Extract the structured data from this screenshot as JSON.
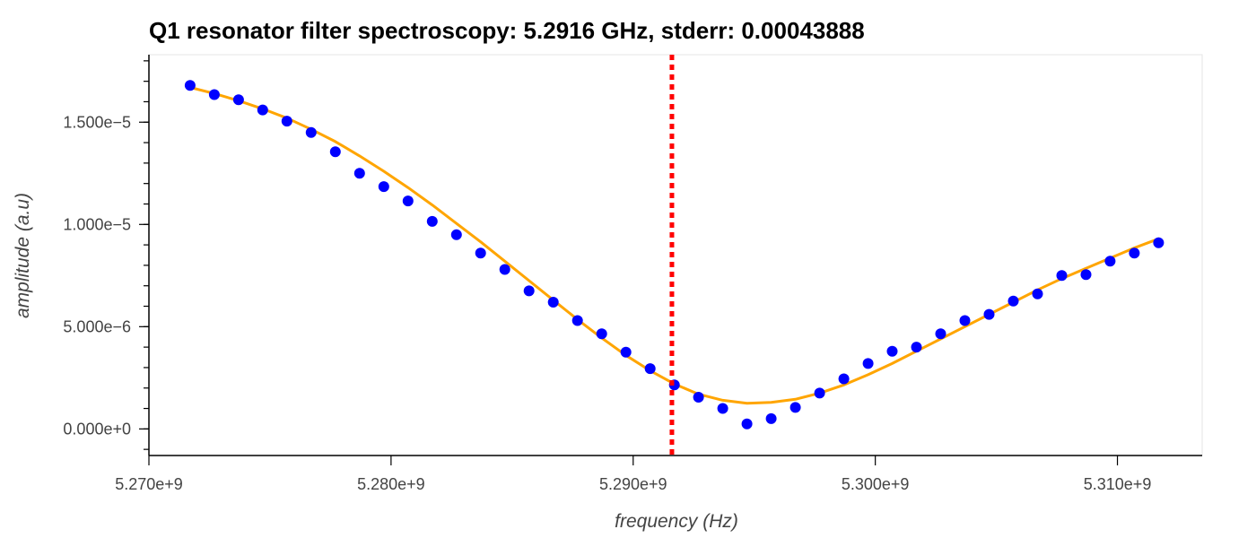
{
  "chart_data": {
    "type": "scatter",
    "title": "Q1 resonator filter spectroscopy: 5.2916 GHz, stderr: 0.00043888",
    "xlabel": "frequency (Hz)",
    "ylabel": "amplitude (a.u)",
    "xlim": [
      5270000000.0,
      5313500000.0
    ],
    "ylim": [
      -1.3e-06,
      1.83e-05
    ],
    "x_ticks": [
      5270000000.0,
      5280000000.0,
      5290000000.0,
      5300000000.0,
      5310000000.0
    ],
    "x_tick_labels": [
      "5.270e+9",
      "5.280e+9",
      "5.290e+9",
      "5.300e+9",
      "5.310e+9"
    ],
    "y_ticks": [
      0,
      5e-06,
      1e-05,
      1.5e-05
    ],
    "y_tick_labels": [
      "0.000e+0",
      "5.000e−6",
      "1.000e−5",
      "1.500e−5"
    ],
    "x_minor_step": 1000000000.0,
    "y_minor_step": 1e-06,
    "grid": false,
    "series": [
      {
        "name": "data",
        "kind": "scatter",
        "color": "#0000ff",
        "points": [
          [
            5271700000.0,
            1.68e-05
          ],
          [
            5272700000.0,
            1.635e-05
          ],
          [
            5273700000.0,
            1.61e-05
          ],
          [
            5274700000.0,
            1.56e-05
          ],
          [
            5275700000.0,
            1.505e-05
          ],
          [
            5276700000.0,
            1.45e-05
          ],
          [
            5277700000.0,
            1.355e-05
          ],
          [
            5278700000.0,
            1.25e-05
          ],
          [
            5279700000.0,
            1.185e-05
          ],
          [
            5280700000.0,
            1.115e-05
          ],
          [
            5281700000.0,
            1.015e-05
          ],
          [
            5282700000.0,
            9.5e-06
          ],
          [
            5283700000.0,
            8.6e-06
          ],
          [
            5284700000.0,
            7.8e-06
          ],
          [
            5285700000.0,
            6.75e-06
          ],
          [
            5286700000.0,
            6.2e-06
          ],
          [
            5287700000.0,
            5.3e-06
          ],
          [
            5288700000.0,
            4.65e-06
          ],
          [
            5289700000.0,
            3.75e-06
          ],
          [
            5290700000.0,
            2.95e-06
          ],
          [
            5291700000.0,
            2.15e-06
          ],
          [
            5292700000.0,
            1.55e-06
          ],
          [
            5293700000.0,
            1e-06
          ],
          [
            5294700000.0,
            2.5e-07
          ],
          [
            5295700000.0,
            5e-07
          ],
          [
            5296700000.0,
            1.05e-06
          ],
          [
            5297700000.0,
            1.75e-06
          ],
          [
            5298700000.0,
            2.45e-06
          ],
          [
            5299700000.0,
            3.2e-06
          ],
          [
            5300700000.0,
            3.8e-06
          ],
          [
            5301700000.0,
            4e-06
          ],
          [
            5302700000.0,
            4.65e-06
          ],
          [
            5303700000.0,
            5.3e-06
          ],
          [
            5304700000.0,
            5.6e-06
          ],
          [
            5305700000.0,
            6.25e-06
          ],
          [
            5306700000.0,
            6.6e-06
          ],
          [
            5307700000.0,
            7.5e-06
          ],
          [
            5308700000.0,
            7.55e-06
          ],
          [
            5309700000.0,
            8.2e-06
          ],
          [
            5310700000.0,
            8.6e-06
          ],
          [
            5311700000.0,
            9.1e-06
          ]
        ]
      },
      {
        "name": "fit",
        "kind": "line",
        "color": "#ffa500",
        "points": [
          [
            5271700000.0,
            1.67e-05
          ],
          [
            5272700000.0,
            1.64e-05
          ],
          [
            5273700000.0,
            1.605e-05
          ],
          [
            5274700000.0,
            1.565e-05
          ],
          [
            5275700000.0,
            1.52e-05
          ],
          [
            5276700000.0,
            1.465e-05
          ],
          [
            5277700000.0,
            1.405e-05
          ],
          [
            5278700000.0,
            1.335e-05
          ],
          [
            5279700000.0,
            1.26e-05
          ],
          [
            5280700000.0,
            1.18e-05
          ],
          [
            5281700000.0,
            1.095e-05
          ],
          [
            5282700000.0,
            1.005e-05
          ],
          [
            5283700000.0,
            9.15e-06
          ],
          [
            5284700000.0,
            8.2e-06
          ],
          [
            5285700000.0,
            7.25e-06
          ],
          [
            5286700000.0,
            6.3e-06
          ],
          [
            5287700000.0,
            5.35e-06
          ],
          [
            5288700000.0,
            4.45e-06
          ],
          [
            5289700000.0,
            3.6e-06
          ],
          [
            5290700000.0,
            2.85e-06
          ],
          [
            5291700000.0,
            2.2e-06
          ],
          [
            5292700000.0,
            1.7e-06
          ],
          [
            5293700000.0,
            1.4e-06
          ],
          [
            5294700000.0,
            1.25e-06
          ],
          [
            5295700000.0,
            1.3e-06
          ],
          [
            5296700000.0,
            1.45e-06
          ],
          [
            5297700000.0,
            1.75e-06
          ],
          [
            5298700000.0,
            2.15e-06
          ],
          [
            5299700000.0,
            2.65e-06
          ],
          [
            5300700000.0,
            3.2e-06
          ],
          [
            5301700000.0,
            3.8e-06
          ],
          [
            5302700000.0,
            4.4e-06
          ],
          [
            5303700000.0,
            5e-06
          ],
          [
            5304700000.0,
            5.6e-06
          ],
          [
            5305700000.0,
            6.2e-06
          ],
          [
            5306700000.0,
            6.8e-06
          ],
          [
            5307700000.0,
            7.35e-06
          ],
          [
            5308700000.0,
            7.85e-06
          ],
          [
            5309700000.0,
            8.35e-06
          ],
          [
            5310700000.0,
            8.85e-06
          ],
          [
            5311700000.0,
            9.3e-06
          ]
        ]
      }
    ],
    "marker_line": {
      "x": 5291600000.0,
      "color": "#ff0000",
      "style": "dotted"
    },
    "colors": {
      "axis": "#000000",
      "tick_label": "#444444",
      "title": "#000000",
      "border": "#e5e5e5"
    }
  }
}
